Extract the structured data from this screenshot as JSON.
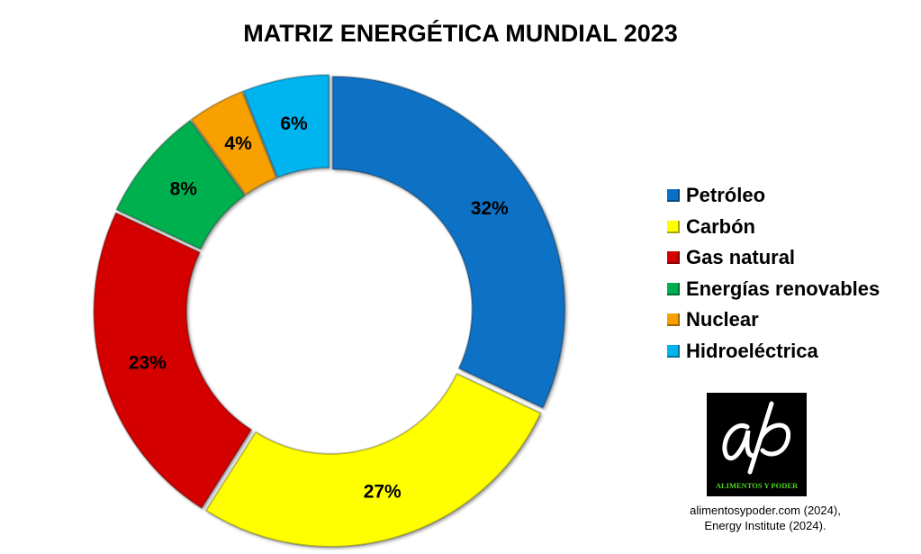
{
  "chart_data": {
    "type": "pie",
    "subtype": "donut",
    "title": "MATRIZ ENERGÉTICA MUNDIAL 2023",
    "categories": [
      "Petróleo",
      "Carbón",
      "Gas natural",
      "Energías renovables",
      "Nuclear",
      "Hidroeléctrica"
    ],
    "values": [
      32,
      27,
      23,
      8,
      4,
      6
    ],
    "data_labels": [
      "32%",
      "27%",
      "23%",
      "8%",
      "4%",
      "6%"
    ],
    "colors": [
      "#0A72C6",
      "#FFFF00",
      "#D40000",
      "#00B050",
      "#F7A000",
      "#00B4F0"
    ],
    "start_angle": "12 o'clock, clockwise",
    "legend_position": "right"
  },
  "logo": {
    "monogram": "ap",
    "text": "ALIMENTOS Y PODER"
  },
  "source": {
    "line1": "alimentosypoder.com (2024),",
    "line2": "Energy Institute (2024)."
  }
}
